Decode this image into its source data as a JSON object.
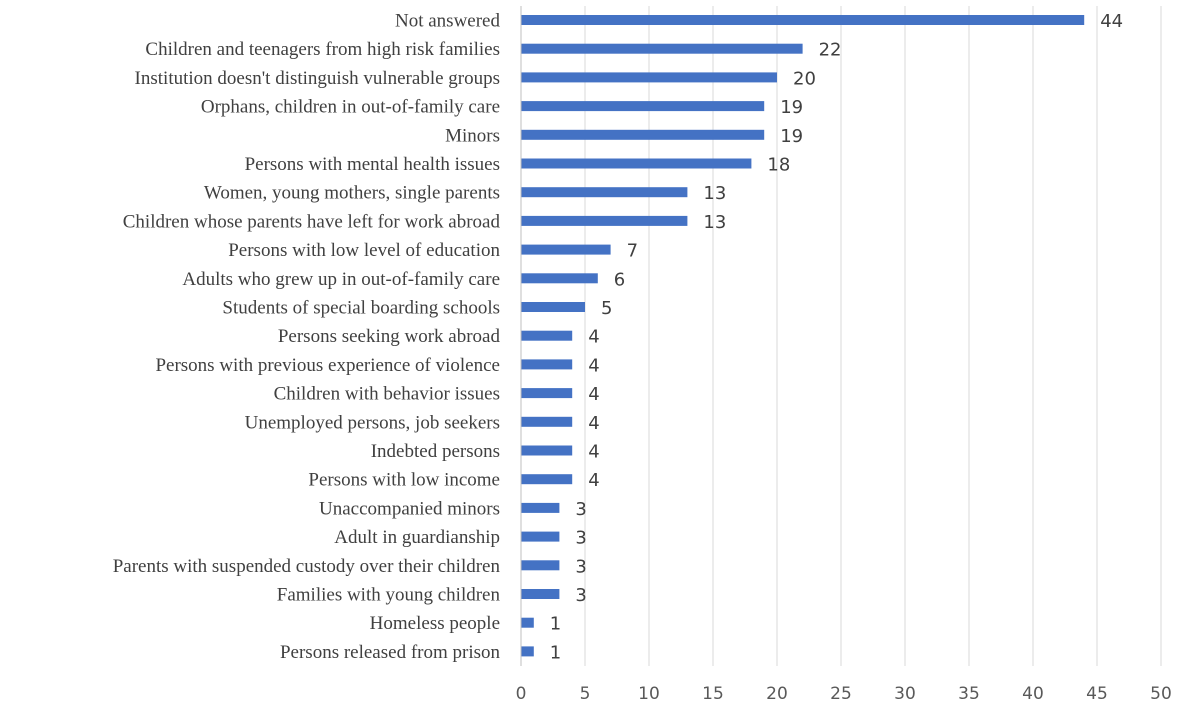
{
  "chart_data": {
    "type": "bar",
    "orientation": "horizontal",
    "categories": [
      "Not answered",
      "Children and teenagers from high risk families",
      "Institution doesn't distinguish vulnerable groups",
      "Orphans, children in out-of-family care",
      "Minors",
      "Persons with mental health issues",
      "Women, young mothers, single parents",
      "Children whose parents have left for work abroad",
      "Persons with low level of education",
      "Adults who grew up in out-of-family care",
      "Students of special boarding schools",
      "Persons seeking work abroad",
      "Persons with previous experience of violence",
      "Children with behavior issues",
      "Unemployed persons, job seekers",
      "Indebted persons",
      "Persons with low income",
      "Unaccompanied minors",
      "Adult in guardianship",
      "Parents with suspended custody over their children",
      "Families with young children",
      "Homeless people",
      "Persons released from prison"
    ],
    "values": [
      44,
      22,
      20,
      19,
      19,
      18,
      13,
      13,
      7,
      6,
      5,
      4,
      4,
      4,
      4,
      4,
      4,
      3,
      3,
      3,
      3,
      1,
      1
    ],
    "xlim": [
      0,
      50
    ],
    "xticks": [
      "0",
      "5",
      "10",
      "15",
      "20",
      "25",
      "30",
      "35",
      "40",
      "45",
      "50"
    ],
    "title": "",
    "xlabel": "",
    "ylabel": "",
    "grid": "vertical",
    "legend": "none",
    "bar_color": "#4472c4"
  }
}
